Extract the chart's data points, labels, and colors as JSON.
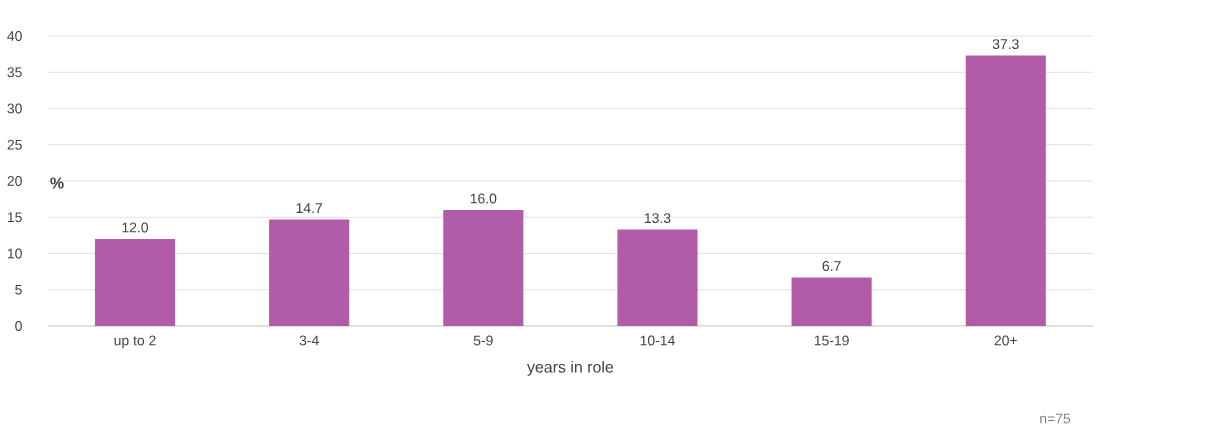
{
  "chart_data": {
    "type": "bar",
    "categories": [
      "up to 2",
      "3-4",
      "5-9",
      "10-14",
      "15-19",
      "20+"
    ],
    "values": [
      12.0,
      14.7,
      16.0,
      13.3,
      6.7,
      37.3
    ],
    "color": "#b05ca8",
    "xlabel": "years in role",
    "ylabel": "%",
    "ylim": [
      0,
      40
    ],
    "yticks": [
      0,
      5,
      10,
      15,
      20,
      25,
      30,
      35,
      40
    ],
    "value_labels": [
      "12.0",
      "14.7",
      "16.0",
      "13.3",
      "6.7",
      "37.3"
    ],
    "grid": "y",
    "annotations": [
      "n=75"
    ]
  }
}
